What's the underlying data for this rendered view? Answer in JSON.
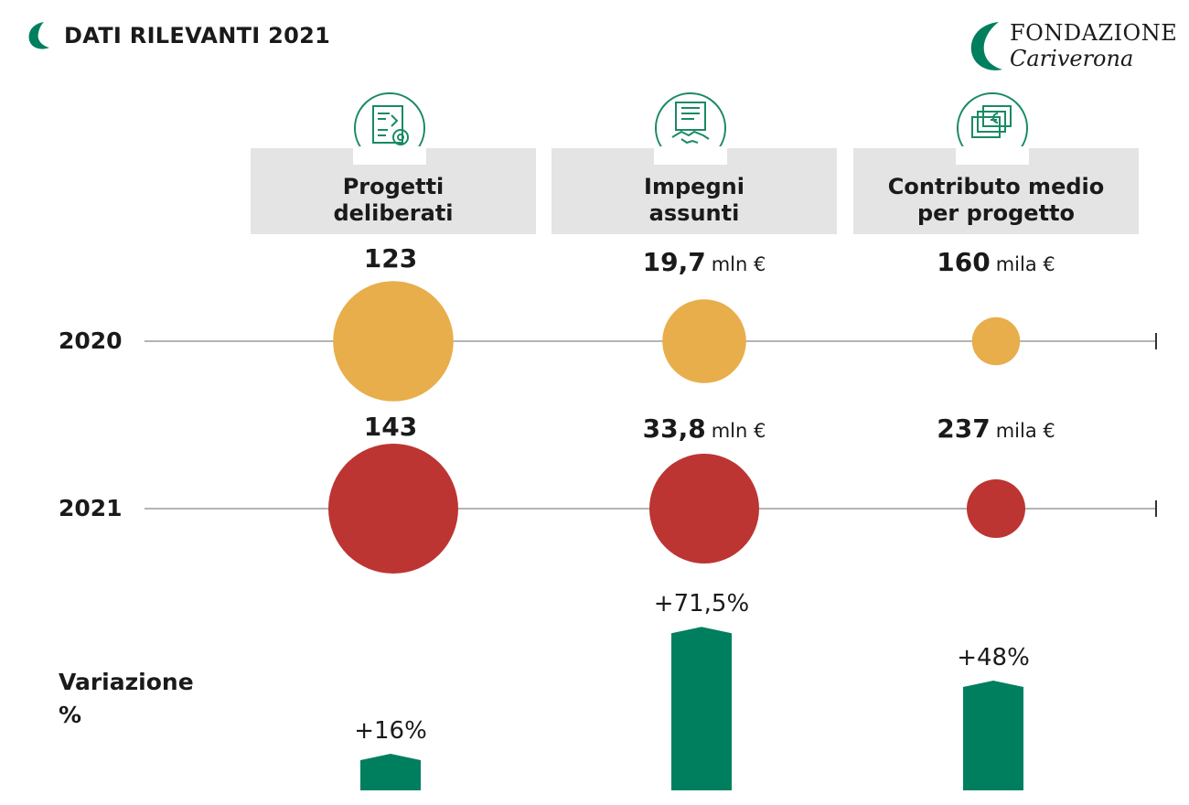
{
  "header": {
    "title": "DATI RILEVANTI 2021"
  },
  "brand": {
    "line1": "FONDAZIONE",
    "line2": "Cariverona"
  },
  "colors": {
    "y2020": "#e8ae4b",
    "y2021": "#bc3532",
    "variation": "#007f5f",
    "icon": "#1a8a63",
    "category_bg": "#e4e4e4"
  },
  "variation_label": [
    "Variazione",
    "%"
  ],
  "chart_data": {
    "type": "bubble",
    "categories": [
      {
        "label": [
          "Progetti",
          "deliberati"
        ],
        "icon": "blueprint-gear-icon",
        "unit": ""
      },
      {
        "label": [
          "Impegni",
          "assunti"
        ],
        "icon": "contract-handshake-icon",
        "unit": "mln €"
      },
      {
        "label": [
          "Contributo medio",
          "per progetto"
        ],
        "icon": "euro-banknotes-icon",
        "unit": "mila €"
      }
    ],
    "series": [
      {
        "name": "2020",
        "values": [
          123,
          19.7,
          160
        ],
        "labels": [
          "123",
          "19,7",
          "160"
        ]
      },
      {
        "name": "2021",
        "values": [
          143,
          33.8,
          237
        ],
        "labels": [
          "143",
          "33,8",
          "237"
        ]
      }
    ],
    "variation": {
      "values": [
        16,
        71.5,
        48
      ],
      "labels": [
        "+16%",
        "+71,5%",
        "+48%"
      ]
    }
  }
}
